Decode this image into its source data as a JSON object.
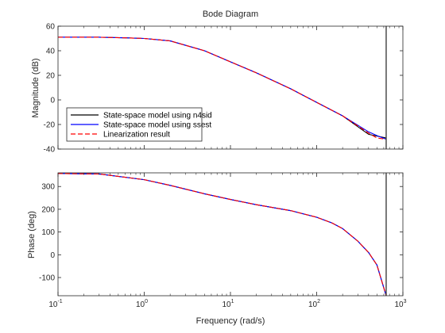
{
  "chart_data": {
    "type": "line",
    "title": "Bode Diagram",
    "xlabel": "Frequency (rad/s)",
    "x_scale": "log",
    "xlim": [
      0.1,
      1000
    ],
    "x_ticks": [
      {
        "value": 0.1,
        "base": "10",
        "exp": "-1"
      },
      {
        "value": 1,
        "base": "10",
        "exp": "0"
      },
      {
        "value": 10,
        "base": "10",
        "exp": "1"
      },
      {
        "value": 100,
        "base": "10",
        "exp": "2"
      },
      {
        "value": 1000,
        "base": "10",
        "exp": "3"
      }
    ],
    "colors": {
      "n4sid": "#000000",
      "ssest": "#0000ff",
      "linearization": "#ff0000",
      "frame": "#262626"
    },
    "legend": {
      "placement": "lower-left of magnitude panel",
      "entries": [
        {
          "label": "State-space model using n4sid",
          "color": "#000000",
          "style": "solid"
        },
        {
          "label": "State-space model using ssest",
          "color": "#0000ff",
          "style": "solid"
        },
        {
          "label": "Linearization result",
          "color": "#ff0000",
          "style": "dashed"
        }
      ]
    },
    "vertical_marker_x": 640,
    "panels": [
      {
        "name": "magnitude",
        "ylabel": "Magnitude (dB)",
        "ylim": [
          -40,
          60
        ],
        "y_ticks": [
          -40,
          -20,
          0,
          20,
          40,
          60
        ],
        "series": [
          {
            "name": "State-space model using n4sid",
            "x": [
              0.1,
              0.3,
              0.6,
              1,
              2,
              5,
              10,
              20,
              50,
              100,
              200,
              400,
              640
            ],
            "y": [
              51,
              51,
              50.5,
              50,
              48,
              40,
              31,
              22,
              9,
              -2,
              -13,
              -28,
              -31
            ]
          },
          {
            "name": "State-space model using ssest",
            "x": [
              0.1,
              0.3,
              0.6,
              1,
              2,
              5,
              10,
              20,
              50,
              100,
              200,
              400,
              500,
              640
            ],
            "y": [
              51,
              51,
              50.5,
              50,
              48,
              40,
              31,
              22,
              9,
              -2,
              -13,
              -26,
              -29,
              -32
            ]
          },
          {
            "name": "Linearization result",
            "x": [
              0.1,
              0.3,
              0.6,
              1,
              2,
              5,
              10,
              20,
              50,
              100,
              200,
              400,
              500,
              640
            ],
            "y": [
              51,
              51,
              50.5,
              50,
              48,
              40,
              31,
              22,
              9,
              -2,
              -13,
              -27,
              -31,
              -32
            ]
          }
        ]
      },
      {
        "name": "phase",
        "ylabel": "Phase (deg)",
        "ylim": [
          -180,
          360
        ],
        "y_ticks": [
          -100,
          0,
          100,
          200,
          300
        ],
        "series": [
          {
            "name": "State-space model using n4sid",
            "x": [
              0.1,
              0.3,
              1,
              2,
              5,
              10,
              20,
              50,
              100,
              150,
              200,
              300,
              400,
              500,
              640
            ],
            "y": [
              357,
              355,
              330,
              305,
              268,
              243,
              220,
              194,
              165,
              140,
              115,
              60,
              10,
              -45,
              -180
            ]
          },
          {
            "name": "State-space model using ssest",
            "x": [
              0.1,
              0.3,
              1,
              2,
              5,
              10,
              20,
              50,
              100,
              150,
              200,
              300,
              400,
              500,
              640
            ],
            "y": [
              357,
              355,
              330,
              305,
              268,
              243,
              220,
              194,
              165,
              140,
              115,
              60,
              10,
              -45,
              -180
            ]
          },
          {
            "name": "Linearization result",
            "x": [
              0.1,
              0.3,
              1,
              2,
              5,
              10,
              20,
              50,
              100,
              150,
              200,
              300,
              400,
              500,
              640
            ],
            "y": [
              357,
              355,
              330,
              305,
              268,
              243,
              220,
              194,
              165,
              140,
              115,
              60,
              10,
              -45,
              -180
            ]
          }
        ]
      }
    ]
  }
}
